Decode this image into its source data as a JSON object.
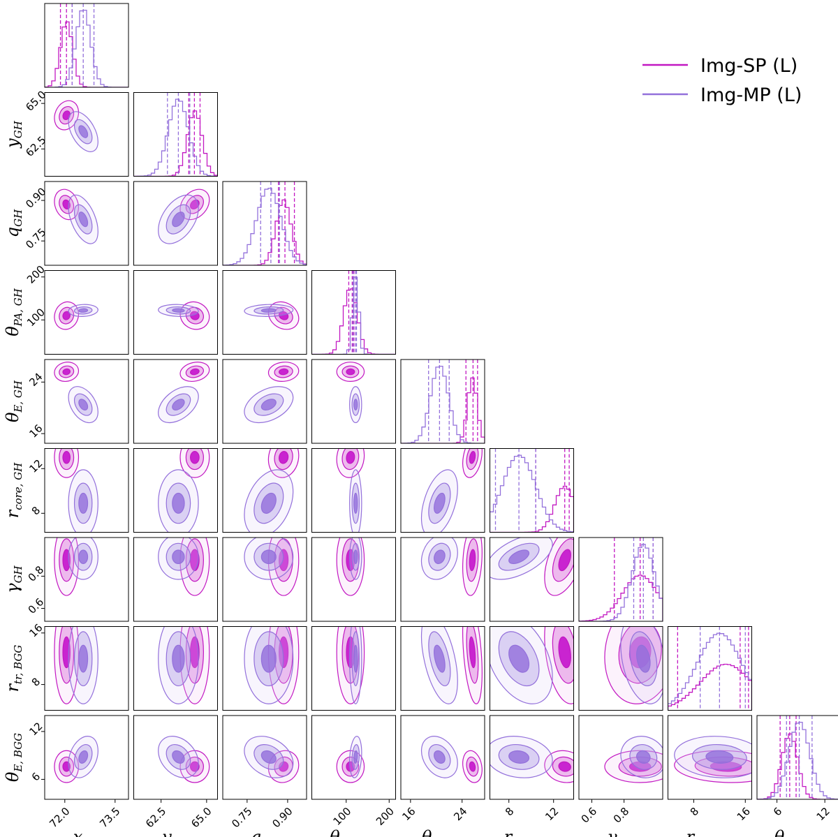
{
  "chart_data": {
    "type": "corner",
    "legend": {
      "placement": "top-right",
      "entries": [
        {
          "label": "Img-SP (L)",
          "color": "#c218c2"
        },
        {
          "label": "Img-MP (L)",
          "color": "#9370db"
        }
      ]
    },
    "parameters": [
      {
        "id": "x_GH",
        "label": "x",
        "sub": "GH",
        "range": [
          71.4,
          73.9
        ],
        "ticks": [
          72.0,
          73.5
        ],
        "tick_labels": [
          "72.0",
          "73.5"
        ]
      },
      {
        "id": "y_GH",
        "label": "y",
        "sub": "GH",
        "range": [
          61.0,
          65.6
        ],
        "ticks": [
          62.5,
          65.0
        ],
        "tick_labels": [
          "62.5",
          "65.0"
        ]
      },
      {
        "id": "q_GH",
        "label": "q",
        "sub": "GH",
        "range": [
          0.66,
          0.97
        ],
        "ticks": [
          0.75,
          0.9
        ],
        "tick_labels": [
          "0.75",
          "0.90"
        ]
      },
      {
        "id": "thetaPA_GH",
        "label": "θ",
        "sub": "PA, GH",
        "range": [
          20,
          215
        ],
        "ticks": [
          100,
          200
        ],
        "tick_labels": [
          "100",
          "200"
        ]
      },
      {
        "id": "thetaE_GH",
        "label": "θ",
        "sub": "E, GH",
        "range": [
          14.5,
          27.5
        ],
        "ticks": [
          16,
          24
        ],
        "tick_labels": [
          "16",
          "24"
        ]
      },
      {
        "id": "rcore_GH",
        "label": "r",
        "sub": "core, GH",
        "range": [
          6.3,
          13.8
        ],
        "ticks": [
          8,
          12
        ],
        "tick_labels": [
          "8",
          "12"
        ]
      },
      {
        "id": "gamma_GH",
        "label": "γ",
        "sub": "GH",
        "range": [
          0.52,
          1.04
        ],
        "ticks": [
          0.6,
          0.8
        ],
        "tick_labels": [
          "0.6",
          "0.8"
        ]
      },
      {
        "id": "rtr_BGG",
        "label": "r",
        "sub": "tr, BGG",
        "range": [
          4.0,
          17.0
        ],
        "ticks": [
          8,
          16
        ],
        "tick_labels": [
          "8",
          "16"
        ]
      },
      {
        "id": "thetaE_BGG",
        "label": "θ",
        "sub": "E, BGG",
        "range": [
          3.5,
          14.0
        ],
        "ticks": [
          6,
          12
        ],
        "tick_labels": [
          "6",
          "12"
        ]
      }
    ],
    "series": [
      {
        "name": "Img-SP (L)",
        "color": "#c218c2",
        "median": [
          72.05,
          64.35,
          0.885,
          110,
          25.6,
          13.0,
          0.9,
          13.0,
          7.6
        ],
        "sigma": [
          0.18,
          0.4,
          0.028,
          16,
          0.75,
          0.9,
          0.11,
          4.0,
          1.0
        ],
        "quantile_lines": [
          [
            71.87,
            72.05,
            72.22
          ],
          [
            64.02,
            64.33,
            64.64
          ],
          [
            0.866,
            0.89,
            0.925
          ],
          [
            106,
            114,
            118
          ],
          [
            24.6,
            25.7,
            26.4
          ],
          [
            10.4,
            13.0,
            13.4
          ],
          [
            0.74,
            0.9,
            0.98
          ],
          [
            5.5,
            15.2,
            16.5
          ],
          [
            6.4,
            7.6,
            8.4
          ]
        ]
      },
      {
        "name": "Img-MP (L)",
        "color": "#9370db",
        "median": [
          72.55,
          63.45,
          0.83,
          122,
          20.5,
          8.9,
          0.92,
          12.0,
          8.8
        ],
        "sigma": [
          0.22,
          0.55,
          0.045,
          7,
          1.4,
          1.5,
          0.07,
          3.5,
          1.3
        ],
        "quantile_lines": [
          [
            72.22,
            72.55,
            72.87
          ],
          [
            62.85,
            63.45,
            64.08
          ],
          [
            0.8,
            0.838,
            0.87
          ],
          [
            116,
            122,
            124
          ],
          [
            18.8,
            20.5,
            22.0
          ],
          [
            6.8,
            8.9,
            10.4
          ],
          [
            0.86,
            0.92,
            0.98
          ],
          [
            9.0,
            12.0,
            16.0
          ],
          [
            7.2,
            8.8,
            10.4
          ]
        ]
      }
    ]
  }
}
